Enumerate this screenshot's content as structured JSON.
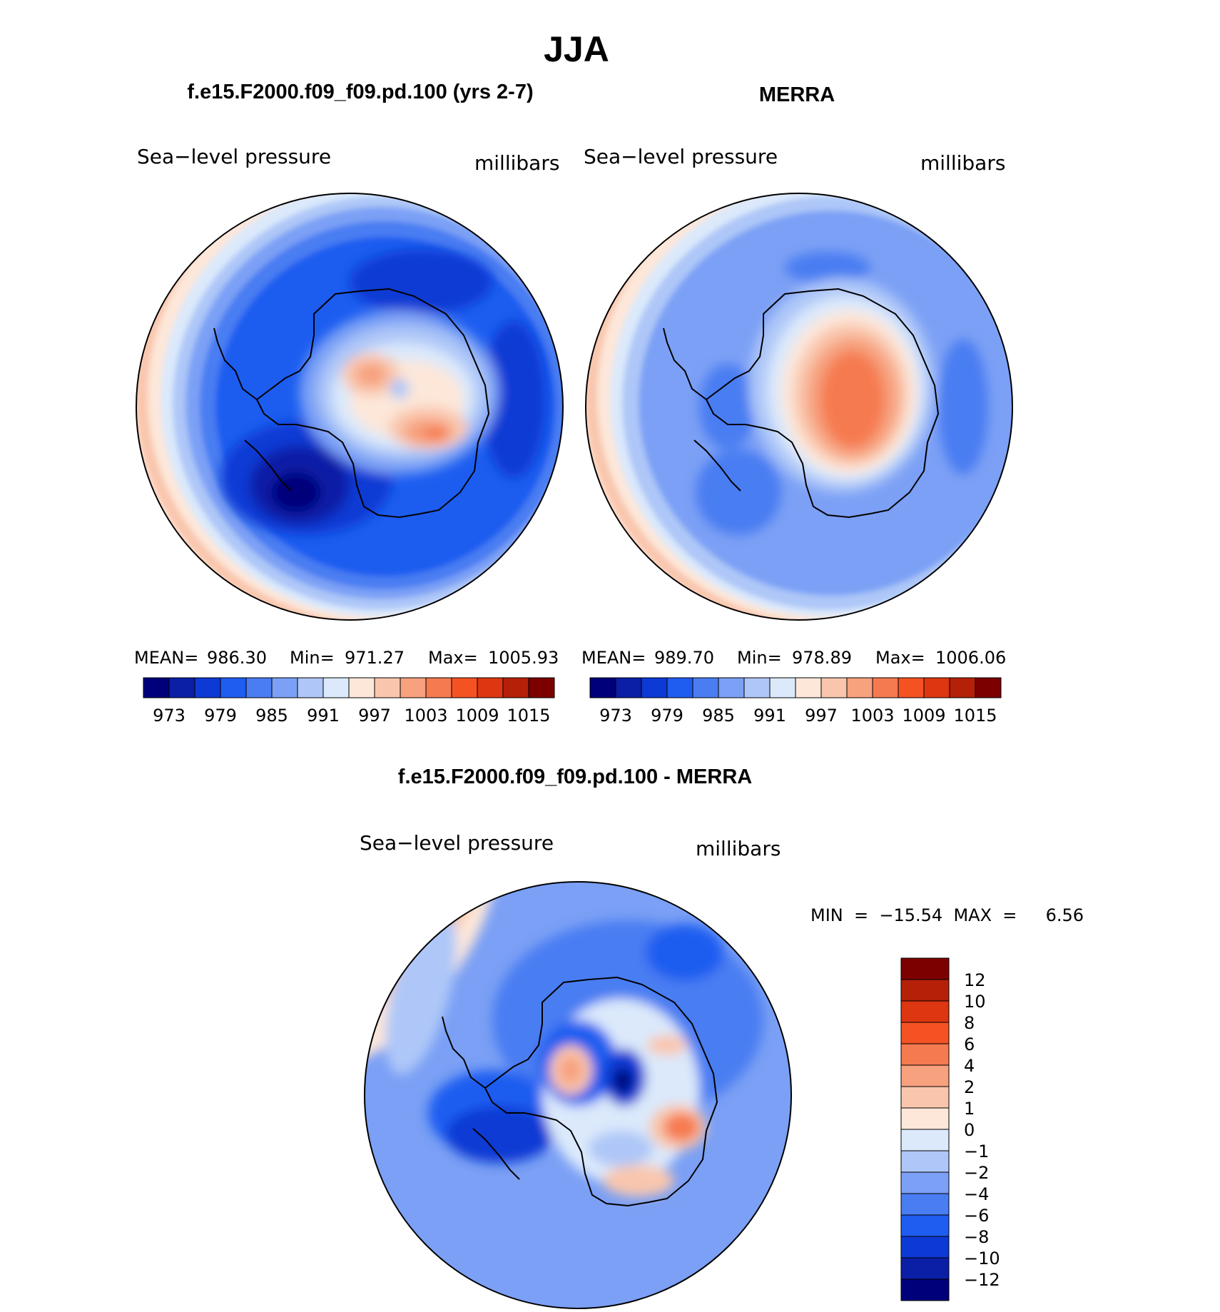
{
  "page_title": "JJA",
  "panels": [
    {
      "title": "f.e15.F2000.f09_f09.pd.100 (yrs 2-7)",
      "variable": "Sea−level pressure",
      "units": "millibars",
      "stats": {
        "mean_label": "MEAN=",
        "mean": "986.30",
        "min_label": "Min=",
        "min": "971.27",
        "max_label": "Max=",
        "max": "1005.93"
      },
      "colorbar_labels": [
        "973",
        "979",
        "985",
        "991",
        "997",
        "1003",
        "1009",
        "1015"
      ]
    },
    {
      "title": "MERRA",
      "variable": "Sea−level pressure",
      "units": "millibars",
      "stats": {
        "mean_label": "MEAN=",
        "mean": "989.70",
        "min_label": "Min=",
        "min": "978.89",
        "max_label": "Max=",
        "max": "1006.06"
      },
      "colorbar_labels": [
        "973",
        "979",
        "985",
        "991",
        "997",
        "1003",
        "1009",
        "1015"
      ]
    }
  ],
  "difference": {
    "title": "f.e15.F2000.f09_f09.pd.100 - MERRA",
    "variable": "Sea−level pressure",
    "units": "millibars",
    "min_text": "MIN  =  −15.54  MAX  =",
    "max_value": "6.56",
    "colorbar_labels": [
      "12",
      "10",
      "8",
      "6",
      "4",
      "2",
      "1",
      "0",
      "−1",
      "−2",
      "−4",
      "−6",
      "−8",
      "−10",
      "−12"
    ]
  },
  "colors": {
    "scale": [
      "#00007a",
      "#0a1fa6",
      "#0d3ad4",
      "#1f5df0",
      "#4a7df2",
      "#7ba0f5",
      "#aec7f8",
      "#dbe9fb",
      "#fde7d9",
      "#f9c6ad",
      "#f7a17e",
      "#f67a4f",
      "#f55223",
      "#dd3610",
      "#b52008",
      "#7d0000"
    ],
    "diff_scale": [
      "#7d0000",
      "#b52008",
      "#dd3610",
      "#f55223",
      "#f67a4f",
      "#f7a17e",
      "#f9c6ad",
      "#fde7d9",
      "#dbe9fb",
      "#aec7f8",
      "#7ba0f5",
      "#4a7df2",
      "#1f5df0",
      "#0d3ad4",
      "#0a1fa6",
      "#00007a"
    ]
  }
}
